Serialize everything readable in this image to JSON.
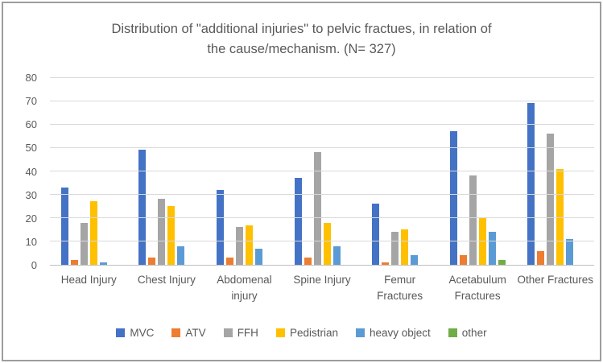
{
  "chart_data": {
    "type": "bar",
    "title": "Distribution of \"additional injuries\" to pelvic fractues, in relation of the cause/mechanism. (N= 327)",
    "categories": [
      "Head Injury",
      "Chest Injury",
      "Abdomenal injury",
      "Spine Injury",
      "Femur Fractures",
      "Acetabulum Fractures",
      "Other Fractures"
    ],
    "series": [
      {
        "name": "MVC",
        "color": "#4472C4",
        "values": [
          33,
          49,
          32,
          37,
          26,
          57,
          69
        ]
      },
      {
        "name": "ATV",
        "color": "#ED7D31",
        "values": [
          2,
          3,
          3,
          3,
          1,
          4,
          6
        ]
      },
      {
        "name": "FFH",
        "color": "#A5A5A5",
        "values": [
          18,
          28,
          16,
          48,
          14,
          38,
          56
        ]
      },
      {
        "name": "Pedistrian",
        "color": "#FFC000",
        "values": [
          27,
          25,
          17,
          18,
          15,
          20,
          41
        ]
      },
      {
        "name": "heavy object",
        "color": "#5B9BD5",
        "values": [
          1,
          8,
          7,
          8,
          4,
          14,
          11
        ]
      },
      {
        "name": "other",
        "color": "#70AD47",
        "values": [
          0,
          0,
          0,
          0,
          0,
          2,
          0
        ]
      }
    ],
    "y_axis": {
      "min": 0,
      "max": 80,
      "step": 10,
      "ticks": [
        "0",
        "10",
        "20",
        "30",
        "40",
        "50",
        "60",
        "70",
        "80"
      ]
    },
    "grid": true,
    "legend_position": "bottom",
    "colors": {
      "gridline": "#D9D9D9",
      "axis_line": "#BFBFBF",
      "text": "#595959",
      "frame_border": "#9D9D9D"
    }
  }
}
